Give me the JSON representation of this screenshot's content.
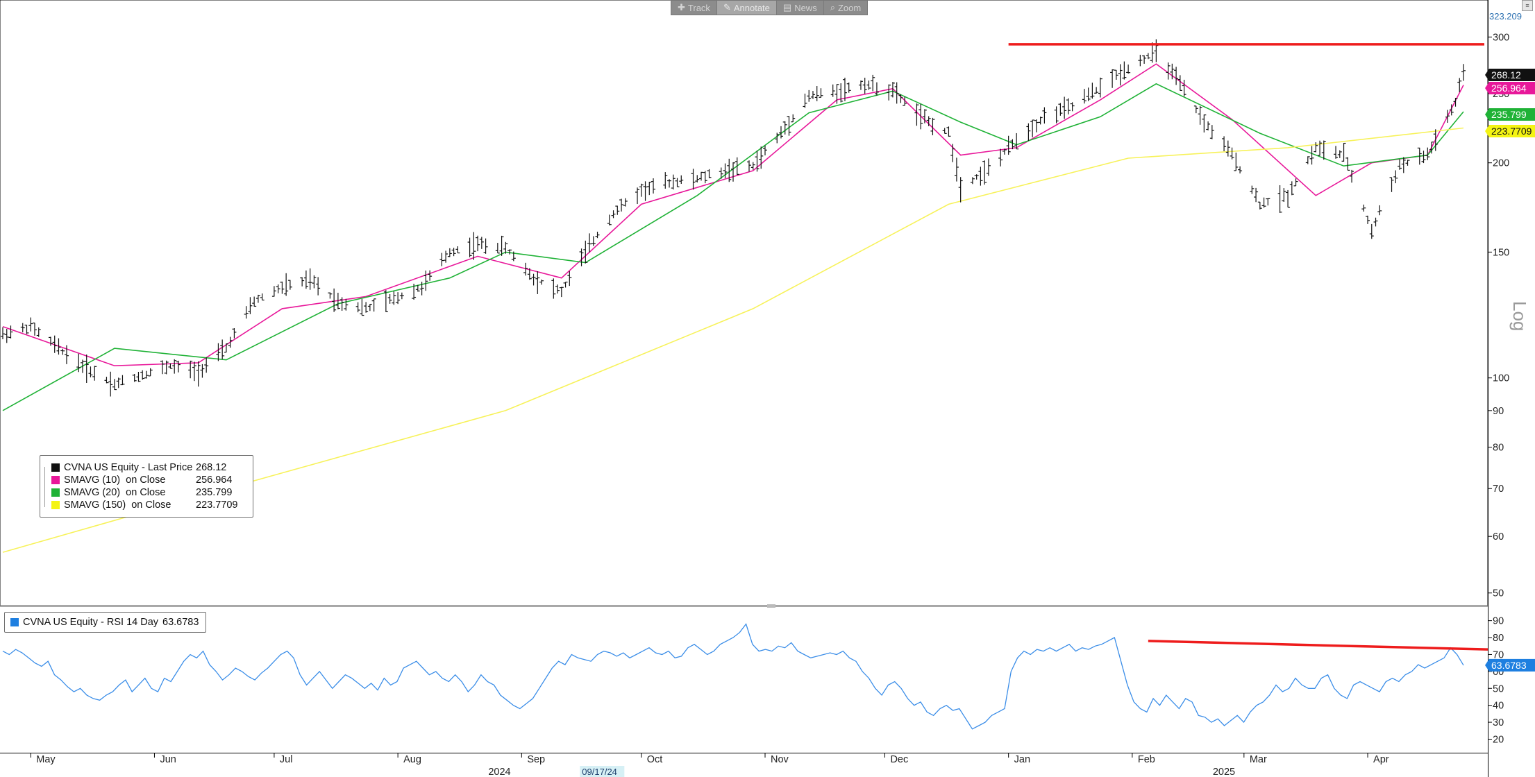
{
  "toolbar": {
    "items": [
      {
        "label": "Track",
        "icon": "plus-icon",
        "active": false
      },
      {
        "label": "Annotate",
        "icon": "pencil-icon",
        "active": true
      },
      {
        "label": "News",
        "icon": "news-icon",
        "active": false
      },
      {
        "label": "Zoom",
        "icon": "magnifier-icon",
        "active": false
      }
    ]
  },
  "price_axis": {
    "ticks": [
      50,
      60,
      70,
      80,
      90,
      100,
      150,
      200,
      250,
      300
    ],
    "top_value": "323.209",
    "scale_label": "Log"
  },
  "rsi_axis": {
    "ticks": [
      20,
      30,
      40,
      50,
      60,
      70,
      80,
      90
    ]
  },
  "time_axis": {
    "months": [
      "May",
      "Jun",
      "Jul",
      "Aug",
      "Sep",
      "Oct",
      "Nov",
      "Dec",
      "Jan",
      "Feb",
      "Mar",
      "Apr"
    ],
    "years": [
      "2024",
      "2025"
    ],
    "highlight_date": "09/17/24"
  },
  "legend": {
    "rows": [
      {
        "name": "CVNA US Equity - Last Price",
        "value": "268.12",
        "color": "#111111"
      },
      {
        "name": "SMAVG (10)  on Close",
        "value": "256.964",
        "color": "#e8189a"
      },
      {
        "name": "SMAVG (20)  on Close",
        "value": "235.799",
        "color": "#1fb236"
      },
      {
        "name": "SMAVG (150)  on Close",
        "value": "223.7709",
        "color": "#f4f414"
      }
    ]
  },
  "rsi_legend": {
    "label": "CVNA US Equity - RSI 14 Day",
    "value": "63.6783",
    "color": "#1e7fe0"
  },
  "chart_data": [
    {
      "type": "ohlc",
      "scale": "log",
      "ylim": [
        48,
        323.209
      ],
      "x_start": "2024-04-24",
      "x_end": "2025-04-25",
      "series": [
        {
          "name": "CVNA US Equity - Last Price",
          "last": 268.12,
          "path": [
            [
              "2024-04-24",
              115
            ],
            [
              "2024-05-01",
              118
            ],
            [
              "2024-05-08",
              110
            ],
            [
              "2024-05-15",
              103
            ],
            [
              "2024-05-22",
              98
            ],
            [
              "2024-05-29",
              101
            ],
            [
              "2024-06-05",
              104
            ],
            [
              "2024-06-12",
              102
            ],
            [
              "2024-06-19",
              110
            ],
            [
              "2024-06-26",
              128
            ],
            [
              "2024-07-03",
              134
            ],
            [
              "2024-07-10",
              137
            ],
            [
              "2024-07-17",
              128
            ],
            [
              "2024-07-24",
              125
            ],
            [
              "2024-07-31",
              129
            ],
            [
              "2024-08-07",
              134
            ],
            [
              "2024-08-14",
              150
            ],
            [
              "2024-08-21",
              154
            ],
            [
              "2024-08-28",
              152
            ],
            [
              "2024-09-04",
              138
            ],
            [
              "2024-09-11",
              132
            ],
            [
              "2024-09-17",
              150
            ],
            [
              "2024-09-24",
              170
            ],
            [
              "2024-10-01",
              183
            ],
            [
              "2024-10-08",
              188
            ],
            [
              "2024-10-15",
              190
            ],
            [
              "2024-10-22",
              195
            ],
            [
              "2024-10-29",
              198
            ],
            [
              "2024-11-05",
              220
            ],
            [
              "2024-11-12",
              248
            ],
            [
              "2024-11-19",
              252
            ],
            [
              "2024-11-26",
              258
            ],
            [
              "2024-12-03",
              252
            ],
            [
              "2024-12-10",
              232
            ],
            [
              "2024-12-17",
              220
            ],
            [
              "2024-12-20",
              185
            ],
            [
              "2024-12-27",
              196
            ],
            [
              "2025-01-03",
              215
            ],
            [
              "2025-01-10",
              232
            ],
            [
              "2025-01-17",
              240
            ],
            [
              "2025-01-24",
              255
            ],
            [
              "2025-01-31",
              272
            ],
            [
              "2025-02-07",
              286
            ],
            [
              "2025-02-12",
              262
            ],
            [
              "2025-02-19",
              228
            ],
            [
              "2025-02-26",
              205
            ],
            [
              "2025-03-05",
              175
            ],
            [
              "2025-03-12",
              180
            ],
            [
              "2025-03-19",
              210
            ],
            [
              "2025-03-26",
              205
            ],
            [
              "2025-04-02",
              160
            ],
            [
              "2025-04-09",
              198
            ],
            [
              "2025-04-16",
              205
            ],
            [
              "2025-04-23",
              242
            ],
            [
              "2025-04-25",
              268.12
            ]
          ]
        }
      ],
      "moving_averages": [
        {
          "name": "SMAVG (10)",
          "last": 256.964,
          "points": [
            [
              "2024-04-24",
              118
            ],
            [
              "2024-05-22",
              104
            ],
            [
              "2024-06-12",
              105
            ],
            [
              "2024-07-03",
              125
            ],
            [
              "2024-07-24",
              130
            ],
            [
              "2024-08-21",
              148
            ],
            [
              "2024-09-11",
              138
            ],
            [
              "2024-10-01",
              175
            ],
            [
              "2024-10-29",
              195
            ],
            [
              "2024-11-19",
              245
            ],
            [
              "2024-12-03",
              254
            ],
            [
              "2024-12-20",
              205
            ],
            [
              "2025-01-03",
              210
            ],
            [
              "2025-01-24",
              245
            ],
            [
              "2025-02-07",
              275
            ],
            [
              "2025-02-26",
              230
            ],
            [
              "2025-03-19",
              180
            ],
            [
              "2025-04-02",
              200
            ],
            [
              "2025-04-16",
              205
            ],
            [
              "2025-04-25",
              256.964
            ]
          ]
        },
        {
          "name": "SMAVG (20)",
          "last": 235.799,
          "points": [
            [
              "2024-04-24",
              90
            ],
            [
              "2024-05-22",
              110
            ],
            [
              "2024-06-19",
              106
            ],
            [
              "2024-07-17",
              127
            ],
            [
              "2024-08-14",
              138
            ],
            [
              "2024-08-28",
              150
            ],
            [
              "2024-09-17",
              145
            ],
            [
              "2024-10-15",
              180
            ],
            [
              "2024-11-12",
              235
            ],
            [
              "2024-12-03",
              252
            ],
            [
              "2024-12-20",
              228
            ],
            [
              "2025-01-03",
              212
            ],
            [
              "2025-01-24",
              232
            ],
            [
              "2025-02-07",
              258
            ],
            [
              "2025-03-05",
              220
            ],
            [
              "2025-03-26",
              198
            ],
            [
              "2025-04-16",
              205
            ],
            [
              "2025-04-25",
              235.799
            ]
          ]
        },
        {
          "name": "SMAVG (150)",
          "last": 223.7709,
          "points": [
            [
              "2024-04-24",
              57
            ],
            [
              "2024-06-19",
              70
            ],
            [
              "2024-08-28",
              90
            ],
            [
              "2024-10-29",
              125
            ],
            [
              "2024-12-17",
              175
            ],
            [
              "2025-01-31",
              203
            ],
            [
              "2025-03-12",
              210
            ],
            [
              "2025-04-25",
              223.7709
            ]
          ]
        }
      ],
      "annotation": {
        "type": "horizontal-line",
        "value": 293,
        "from": "2025-01-01",
        "to": "2025-04-25",
        "color": "#ee1c1c"
      }
    },
    {
      "type": "line",
      "ylim": [
        12,
        96
      ],
      "series": [
        {
          "name": "CVNA US Equity - RSI 14 Day",
          "last": 63.6783,
          "values": [
            72,
            70,
            73,
            71,
            68,
            65,
            63,
            66,
            58,
            55,
            51,
            48,
            50,
            46,
            44,
            43,
            46,
            48,
            52,
            55,
            48,
            52,
            56,
            50,
            48,
            56,
            54,
            60,
            66,
            70,
            68,
            72,
            64,
            60,
            55,
            58,
            62,
            60,
            57,
            55,
            59,
            62,
            66,
            70,
            72,
            68,
            58,
            52,
            56,
            60,
            55,
            50,
            54,
            58,
            56,
            53,
            50,
            53,
            49,
            56,
            52,
            54,
            62,
            64,
            66,
            62,
            58,
            60,
            56,
            54,
            58,
            54,
            48,
            52,
            58,
            54,
            52,
            46,
            43,
            40,
            38,
            41,
            44,
            50,
            56,
            62,
            66,
            64,
            70,
            68,
            67,
            66,
            70,
            72,
            71,
            69,
            71,
            68,
            70,
            72,
            74,
            71,
            70,
            72,
            68,
            69,
            74,
            76,
            73,
            70,
            72,
            76,
            78,
            80,
            83,
            88,
            76,
            72,
            73,
            72,
            75,
            74,
            77,
            72,
            70,
            68,
            69,
            70,
            71,
            70,
            72,
            68,
            66,
            60,
            56,
            50,
            46,
            52,
            54,
            50,
            44,
            40,
            42,
            36,
            34,
            38,
            40,
            37,
            38,
            32,
            26,
            28,
            30,
            34,
            36,
            38,
            60,
            68,
            72,
            70,
            73,
            72,
            74,
            72,
            74,
            76,
            72,
            74,
            73,
            75,
            76,
            78,
            80,
            66,
            52,
            42,
            38,
            36,
            44,
            40,
            46,
            42,
            38,
            44,
            42,
            34,
            33,
            30,
            32,
            28,
            31,
            34,
            30,
            36,
            40,
            42,
            46,
            52,
            48,
            50,
            56,
            52,
            50,
            50,
            56,
            58,
            50,
            46,
            44,
            52,
            54,
            52,
            50,
            48,
            54,
            56,
            54,
            58,
            60,
            64,
            62,
            64,
            66,
            68,
            74,
            70,
            63.6783
          ]
        }
      ],
      "annotation": {
        "type": "trend-line",
        "from": [
          "2025-02-05",
          78
        ],
        "to": [
          "2025-04-25",
          73
        ],
        "color": "#ee1c1c"
      }
    }
  ]
}
